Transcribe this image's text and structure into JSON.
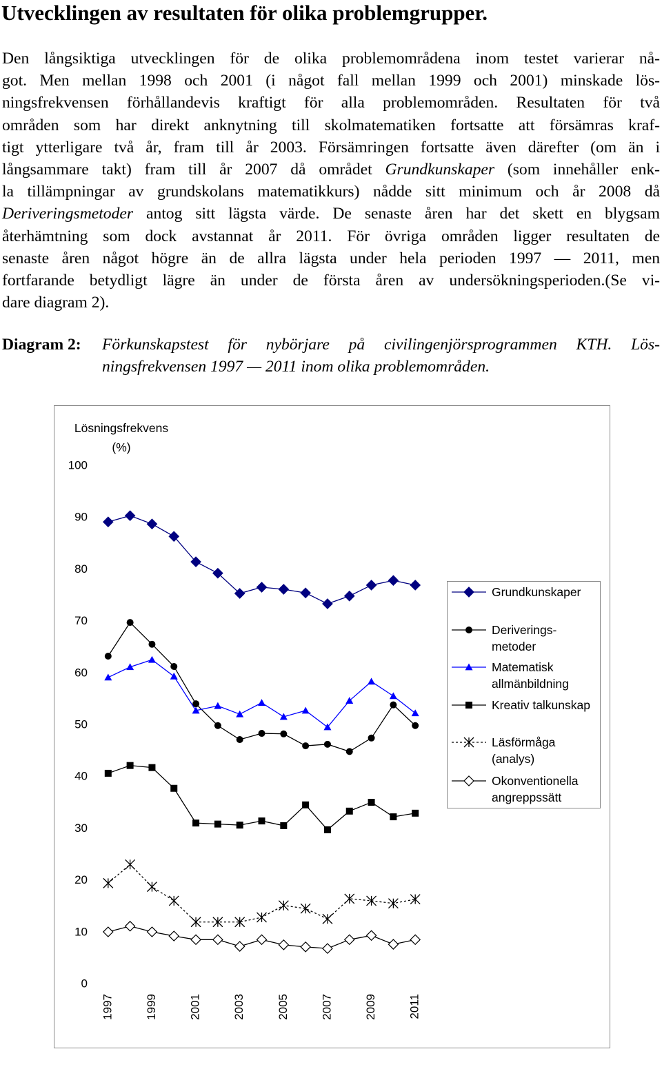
{
  "title": "Utvecklingen av resultaten för olika problemgrupper.",
  "paragraph": [
    [
      {
        "text": "Den långsiktiga utvecklingen för de olika problemområdena inom testet varierar nå-"
      }
    ],
    [
      {
        "text": "got. Men mellan 1998 och 2001 (i något fall mellan 1999 och 2001) minskade lös-"
      }
    ],
    [
      {
        "text": "ningsfrekvensen förhållandevis kraftigt för alla problemområden. Resultaten för två"
      }
    ],
    [
      {
        "text": "områden som har direkt anknytning till skolmatematiken fortsatte att försämras kraf-"
      }
    ],
    [
      {
        "text": "tigt ytterligare två år, fram till år 2003. Försämringen fortsatte även därefter (om än i"
      }
    ],
    [
      {
        "text": "långsammare takt) fram till år 2007 då området "
      },
      {
        "text": "Grundkunskaper",
        "italic": true
      },
      {
        "text": " (som innehåller enk-"
      }
    ],
    [
      {
        "text": "la tillämpningar av grundskolans matematikkurs) nådde sitt minimum och år 2008 då"
      }
    ],
    [
      {
        "text": "Deriveringsmetoder",
        "italic": true
      },
      {
        "text": " antog sitt lägsta värde. De senaste åren har det skett en blygsam"
      }
    ],
    [
      {
        "text": "återhämtning som dock avstannat år 2011. För övriga områden ligger resultaten de"
      }
    ],
    [
      {
        "text": "senaste åren något högre än de allra lägsta under hela perioden 1997 — 2011, men"
      }
    ],
    [
      {
        "text": "fortfarande betydligt lägre än under de första åren av undersökningsperioden.(Se vi-"
      }
    ],
    [
      {
        "text": "dare diagram 2)."
      }
    ]
  ],
  "caption": {
    "label": "Diagram 2:",
    "lines": [
      "Förkunskapstest för nybörjare på civilingenjörsprogrammen KTH. Lös-",
      "ningsfrekvensen 1997 — 2011 inom olika problemområden."
    ]
  },
  "chart_data": {
    "type": "line",
    "ylabel": "Lösningsfrekvens\n(%)",
    "x": [
      1997,
      1998,
      1999,
      2000,
      2001,
      2002,
      2003,
      2004,
      2005,
      2006,
      2007,
      2008,
      2009,
      2010,
      2011
    ],
    "xlim": [
      1996,
      2012
    ],
    "xticks": [
      1997,
      1999,
      2001,
      2003,
      2005,
      2007,
      2009,
      2011
    ],
    "ylim": [
      0,
      100
    ],
    "yticks": [
      0,
      10,
      20,
      30,
      40,
      50,
      60,
      70,
      80,
      90,
      100
    ],
    "legend": "right",
    "series": [
      {
        "name": "Grundkunskaper",
        "color": "#000080",
        "marker": "diamond",
        "dashed": false,
        "values": [
          89.2,
          90.4,
          88.8,
          86.4,
          81.5,
          79.3,
          75.4,
          76.6,
          76.2,
          75.5,
          73.4,
          74.9,
          77.0,
          77.9,
          77.0
        ]
      },
      {
        "name": "Deriverings-\nmetoder",
        "color": "#000000",
        "marker": "circle",
        "dashed": false,
        "values": [
          63.3,
          69.8,
          65.6,
          61.3,
          54.1,
          49.9,
          47.2,
          48.4,
          48.3,
          46.0,
          46.3,
          44.9,
          47.5,
          53.9,
          49.9
        ]
      },
      {
        "name": "Matematisk\nallmänbildning",
        "color": "#0000ff",
        "marker": "triangle",
        "dashed": false,
        "values": [
          59.2,
          61.2,
          62.6,
          59.4,
          52.8,
          53.7,
          52.1,
          54.3,
          51.6,
          52.8,
          49.6,
          54.7,
          58.4,
          55.6,
          52.3
        ]
      },
      {
        "name": "Kreativ talkunskap",
        "color": "#000000",
        "marker": "square",
        "dashed": false,
        "values": [
          40.7,
          42.2,
          41.8,
          37.8,
          31.1,
          30.9,
          30.7,
          31.5,
          30.6,
          34.6,
          29.8,
          33.4,
          35.1,
          32.3,
          33.0
        ]
      },
      {
        "name": "Läsförmåga\n(analys)",
        "color": "#000000",
        "marker": "star",
        "dashed": true,
        "values": [
          19.5,
          23.1,
          18.8,
          16.1,
          12.0,
          12.0,
          12.0,
          12.9,
          15.2,
          14.6,
          12.6,
          16.5,
          16.1,
          15.6,
          16.4
        ]
      },
      {
        "name": "Okonventionella\nangreppssätt",
        "color": "#000000",
        "marker": "hollow-diamond",
        "dashed": false,
        "values": [
          10.1,
          11.2,
          10.1,
          9.3,
          8.6,
          8.6,
          7.3,
          8.6,
          7.6,
          7.2,
          6.9,
          8.6,
          9.4,
          7.7,
          8.6
        ]
      }
    ]
  }
}
